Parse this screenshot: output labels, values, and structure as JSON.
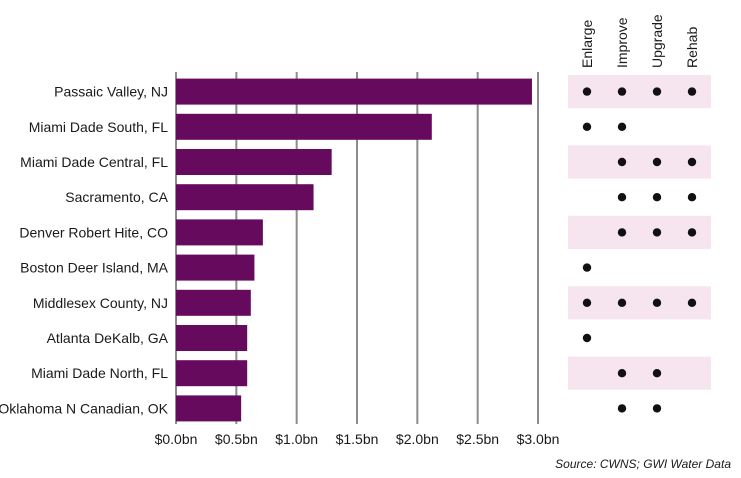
{
  "chart_data": {
    "type": "bar",
    "orientation": "horizontal",
    "categories": [
      "Passaic Valley, NJ",
      "Miami Dade South, FL",
      "Miami Dade Central, FL",
      "Sacramento, CA",
      "Denver Robert Hite, CO",
      "Boston Deer Island, MA",
      "Middlesex County, NJ",
      "Atlanta DeKalb, GA",
      "Miami Dade North, FL",
      "Oklahoma N Canadian, OK"
    ],
    "values": [
      2.95,
      2.12,
      1.29,
      1.14,
      0.72,
      0.65,
      0.62,
      0.59,
      0.59,
      0.54
    ],
    "units": "bn",
    "xlim": [
      0,
      3.0
    ],
    "x_ticks": [
      0,
      0.5,
      1.0,
      1.5,
      2.0,
      2.5,
      3.0
    ],
    "x_tick_labels": [
      "$0.0bn",
      "$0.5bn",
      "$1.0bn",
      "$1.5bn",
      "$2.0bn",
      "$2.5bn",
      "$3.0bn"
    ],
    "grid": "vertical",
    "bar_color": "#650a5c",
    "grid_color": "#8c8c8c",
    "band_color": "#f6e4ee",
    "dot_color": "#111111",
    "matrix": {
      "columns": [
        "Enlarge",
        "Improve",
        "Upgrade",
        "Rehab"
      ],
      "rows": [
        [
          true,
          true,
          true,
          true
        ],
        [
          true,
          true,
          false,
          false
        ],
        [
          false,
          true,
          true,
          true
        ],
        [
          false,
          true,
          true,
          true
        ],
        [
          false,
          true,
          true,
          true
        ],
        [
          true,
          false,
          false,
          false
        ],
        [
          true,
          true,
          true,
          true
        ],
        [
          true,
          false,
          false,
          false
        ],
        [
          false,
          true,
          true,
          false
        ],
        [
          false,
          true,
          true,
          false
        ]
      ]
    },
    "source": "Source: CWNS; GWI Water Data"
  }
}
